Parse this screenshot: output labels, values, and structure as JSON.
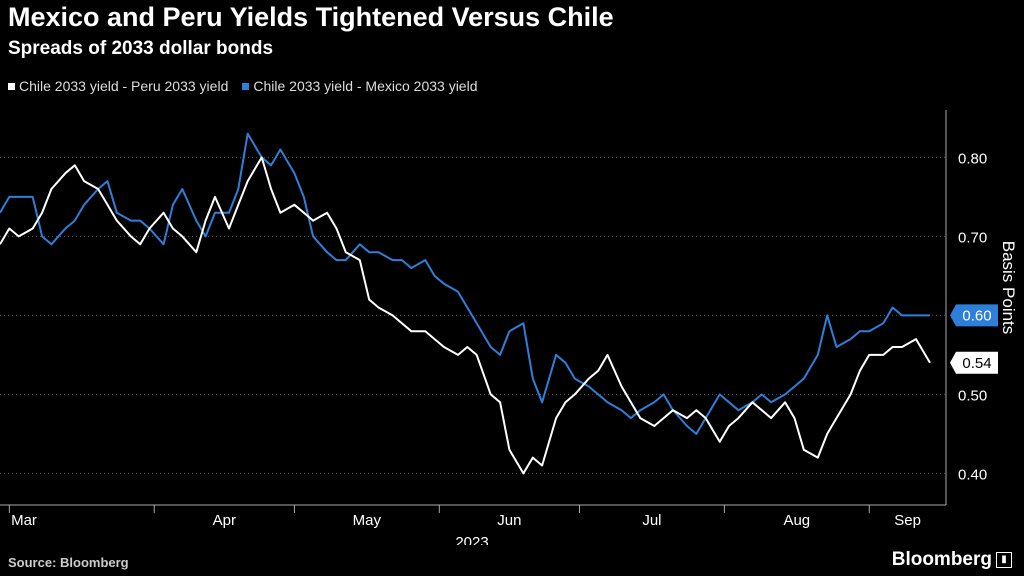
{
  "title": "Mexico and Peru Yields Tightened Versus Chile",
  "subtitle": "Spreads of 2033 dollar bonds",
  "source": "Source: Bloomberg",
  "brand": "Bloomberg",
  "brand_icon": "terminal-icon",
  "chart_data": {
    "type": "line",
    "ylabel": "Basis Points",
    "ylim": [
      0.36,
      0.86
    ],
    "yticks": [
      "0.40",
      "0.50",
      "0.60",
      "0.70",
      "0.80"
    ],
    "month_labels": [
      "Mar",
      "Apr",
      "May",
      "Jun",
      "Jul",
      "Aug",
      "Sep"
    ],
    "year_label": "2023",
    "x_start": "2023-02-27",
    "x_end": "2023-09-14",
    "month_starts": [
      "2023-03-01",
      "2023-04-01",
      "2023-05-01",
      "2023-06-01",
      "2023-07-01",
      "2023-08-01",
      "2023-09-01"
    ],
    "series": [
      {
        "name": "Chile 2033 yield - Peru 2033 yield",
        "color": "#ffffff",
        "last_label": "0.54",
        "x": [
          "2023-02-27",
          "2023-03-01",
          "2023-03-03",
          "2023-03-06",
          "2023-03-08",
          "2023-03-10",
          "2023-03-13",
          "2023-03-15",
          "2023-03-17",
          "2023-03-20",
          "2023-03-22",
          "2023-03-24",
          "2023-03-27",
          "2023-03-29",
          "2023-03-31",
          "2023-04-03",
          "2023-04-05",
          "2023-04-07",
          "2023-04-10",
          "2023-04-12",
          "2023-04-14",
          "2023-04-17",
          "2023-04-19",
          "2023-04-21",
          "2023-04-24",
          "2023-04-26",
          "2023-04-28",
          "2023-05-01",
          "2023-05-03",
          "2023-05-05",
          "2023-05-08",
          "2023-05-10",
          "2023-05-12",
          "2023-05-15",
          "2023-05-17",
          "2023-05-19",
          "2023-05-22",
          "2023-05-24",
          "2023-05-26",
          "2023-05-29",
          "2023-05-31",
          "2023-06-02",
          "2023-06-05",
          "2023-06-07",
          "2023-06-09",
          "2023-06-12",
          "2023-06-14",
          "2023-06-16",
          "2023-06-19",
          "2023-06-21",
          "2023-06-23",
          "2023-06-26",
          "2023-06-28",
          "2023-06-30",
          "2023-07-03",
          "2023-07-05",
          "2023-07-07",
          "2023-07-10",
          "2023-07-12",
          "2023-07-14",
          "2023-07-17",
          "2023-07-19",
          "2023-07-21",
          "2023-07-24",
          "2023-07-26",
          "2023-07-28",
          "2023-07-31",
          "2023-08-02",
          "2023-08-04",
          "2023-08-07",
          "2023-08-09",
          "2023-08-11",
          "2023-08-14",
          "2023-08-16",
          "2023-08-18",
          "2023-08-21",
          "2023-08-23",
          "2023-08-25",
          "2023-08-28",
          "2023-08-30",
          "2023-09-01",
          "2023-09-04",
          "2023-09-06",
          "2023-09-08",
          "2023-09-11",
          "2023-09-13",
          "2023-09-14"
        ],
        "values": [
          0.69,
          0.71,
          0.7,
          0.71,
          0.73,
          0.76,
          0.78,
          0.79,
          0.77,
          0.76,
          0.74,
          0.72,
          0.7,
          0.69,
          0.71,
          0.73,
          0.71,
          0.7,
          0.68,
          0.72,
          0.75,
          0.71,
          0.74,
          0.77,
          0.8,
          0.76,
          0.73,
          0.74,
          0.73,
          0.72,
          0.73,
          0.71,
          0.68,
          0.67,
          0.62,
          0.61,
          0.6,
          0.59,
          0.58,
          0.58,
          0.57,
          0.56,
          0.55,
          0.56,
          0.55,
          0.5,
          0.49,
          0.43,
          0.4,
          0.42,
          0.41,
          0.47,
          0.49,
          0.5,
          0.52,
          0.53,
          0.55,
          0.51,
          0.49,
          0.47,
          0.46,
          0.47,
          0.48,
          0.47,
          0.48,
          0.47,
          0.44,
          0.46,
          0.47,
          0.49,
          0.48,
          0.47,
          0.49,
          0.47,
          0.43,
          0.42,
          0.45,
          0.47,
          0.5,
          0.53,
          0.55,
          0.55,
          0.56,
          0.56,
          0.57,
          0.55,
          0.54
        ]
      },
      {
        "name": "Chile 2033 yield - Mexico 2033 yield",
        "color": "#2e7fd9",
        "last_label": "0.60",
        "x": [
          "2023-02-27",
          "2023-03-01",
          "2023-03-03",
          "2023-03-06",
          "2023-03-08",
          "2023-03-10",
          "2023-03-13",
          "2023-03-15",
          "2023-03-17",
          "2023-03-20",
          "2023-03-22",
          "2023-03-24",
          "2023-03-27",
          "2023-03-29",
          "2023-03-31",
          "2023-04-03",
          "2023-04-05",
          "2023-04-07",
          "2023-04-10",
          "2023-04-12",
          "2023-04-14",
          "2023-04-17",
          "2023-04-19",
          "2023-04-21",
          "2023-04-24",
          "2023-04-26",
          "2023-04-28",
          "2023-05-01",
          "2023-05-03",
          "2023-05-05",
          "2023-05-08",
          "2023-05-10",
          "2023-05-12",
          "2023-05-15",
          "2023-05-17",
          "2023-05-19",
          "2023-05-22",
          "2023-05-24",
          "2023-05-26",
          "2023-05-29",
          "2023-05-31",
          "2023-06-02",
          "2023-06-05",
          "2023-06-07",
          "2023-06-09",
          "2023-06-12",
          "2023-06-14",
          "2023-06-16",
          "2023-06-19",
          "2023-06-21",
          "2023-06-23",
          "2023-06-26",
          "2023-06-28",
          "2023-06-30",
          "2023-07-03",
          "2023-07-05",
          "2023-07-07",
          "2023-07-10",
          "2023-07-12",
          "2023-07-14",
          "2023-07-17",
          "2023-07-19",
          "2023-07-21",
          "2023-07-24",
          "2023-07-26",
          "2023-07-28",
          "2023-07-31",
          "2023-08-02",
          "2023-08-04",
          "2023-08-07",
          "2023-08-09",
          "2023-08-11",
          "2023-08-14",
          "2023-08-16",
          "2023-08-18",
          "2023-08-21",
          "2023-08-23",
          "2023-08-25",
          "2023-08-28",
          "2023-08-30",
          "2023-09-01",
          "2023-09-04",
          "2023-09-06",
          "2023-09-08",
          "2023-09-11",
          "2023-09-13",
          "2023-09-14"
        ],
        "values": [
          0.73,
          0.75,
          0.75,
          0.75,
          0.7,
          0.69,
          0.71,
          0.72,
          0.74,
          0.76,
          0.77,
          0.73,
          0.72,
          0.72,
          0.71,
          0.69,
          0.74,
          0.76,
          0.72,
          0.7,
          0.73,
          0.73,
          0.76,
          0.83,
          0.8,
          0.79,
          0.81,
          0.78,
          0.75,
          0.7,
          0.68,
          0.67,
          0.67,
          0.69,
          0.68,
          0.68,
          0.67,
          0.67,
          0.66,
          0.67,
          0.65,
          0.64,
          0.63,
          0.61,
          0.59,
          0.56,
          0.55,
          0.58,
          0.59,
          0.52,
          0.49,
          0.55,
          0.54,
          0.52,
          0.51,
          0.5,
          0.49,
          0.48,
          0.47,
          0.48,
          0.49,
          0.5,
          0.48,
          0.46,
          0.45,
          0.47,
          0.5,
          0.49,
          0.48,
          0.49,
          0.5,
          0.49,
          0.5,
          0.51,
          0.52,
          0.55,
          0.6,
          0.56,
          0.57,
          0.58,
          0.58,
          0.59,
          0.61,
          0.6,
          0.6,
          0.6,
          0.6
        ]
      }
    ]
  }
}
